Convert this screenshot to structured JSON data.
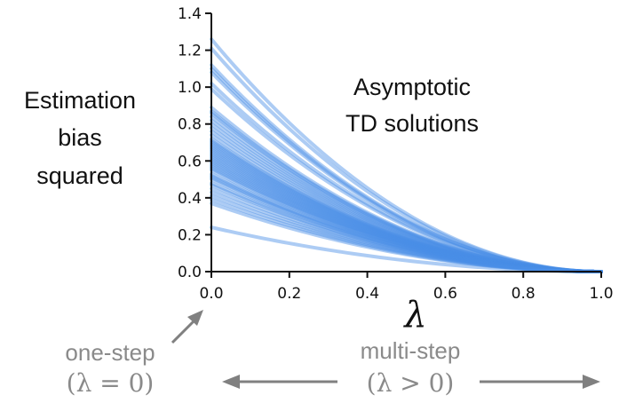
{
  "chart_data": {
    "type": "line",
    "title": "",
    "xlabel": "λ",
    "ylabel": [
      "Estimation",
      "bias",
      "squared"
    ],
    "xlim": [
      0.0,
      1.0
    ],
    "ylim": [
      0.0,
      1.4
    ],
    "x_ticks": [
      "0.0",
      "0.2",
      "0.4",
      "0.6",
      "0.8",
      "1.0"
    ],
    "y_ticks": [
      "0.0",
      "0.2",
      "0.4",
      "0.6",
      "0.8",
      "1.0",
      "1.2",
      "1.4"
    ],
    "grid": false,
    "series_color": "#4a8fe7",
    "annotation": [
      "Asymptotic",
      "TD solutions"
    ],
    "curve_shape": "quadratic_decay_to_zero_at_x_1",
    "series_start_values": [
      1.26,
      1.21,
      1.12,
      1.1,
      1.08,
      1.02,
      0.99,
      0.89,
      0.87,
      0.86,
      0.84,
      0.82,
      0.8,
      0.78,
      0.76,
      0.74,
      0.72,
      0.71,
      0.7,
      0.69,
      0.68,
      0.67,
      0.66,
      0.65,
      0.64,
      0.63,
      0.62,
      0.61,
      0.6,
      0.59,
      0.58,
      0.57,
      0.56,
      0.55,
      0.53,
      0.52,
      0.51,
      0.5,
      0.48,
      0.47,
      0.45,
      0.43,
      0.41,
      0.39,
      0.37,
      0.24
    ],
    "bottom": {
      "left_label": "one-step",
      "left_math": "(λ = 0)",
      "right_label": "multi-step",
      "right_math": "(λ > 0)"
    }
  }
}
